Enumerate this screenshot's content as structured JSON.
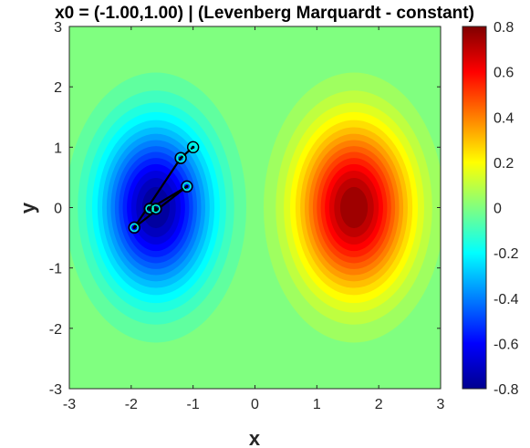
{
  "chart_data": {
    "type": "contour",
    "title": "x0 = (-1.00,1.00) | (Levenberg Marquardt - constant)",
    "xlabel": "x",
    "ylabel": "y",
    "xlim": [
      -3,
      3
    ],
    "ylim": [
      -3,
      3
    ],
    "x_ticks": [
      "-3",
      "-2",
      "-1",
      "0",
      "1",
      "2",
      "3"
    ],
    "y_ticks": [
      "-3",
      "-2",
      "-1",
      "0",
      "1",
      "2",
      "3"
    ],
    "colorbar": {
      "range": [
        -0.8,
        0.8
      ],
      "ticks": [
        "-0.8",
        "-0.6",
        "-0.4",
        "-0.2",
        "0",
        "0.2",
        "0.4",
        "0.6",
        "0.8"
      ],
      "colormap": "jet"
    },
    "contour_features": [
      {
        "kind": "minimum",
        "x": -1.6,
        "y": 0.0,
        "value": -0.8
      },
      {
        "kind": "maximum",
        "x": 1.6,
        "y": 0.0,
        "value": 0.8
      }
    ],
    "path": {
      "color": "#000000",
      "marker_color": "#00ffd0",
      "points": [
        {
          "x": -1.0,
          "y": 1.0
        },
        {
          "x": -1.2,
          "y": 0.82
        },
        {
          "x": -1.95,
          "y": -0.33
        },
        {
          "x": -1.1,
          "y": 0.35
        },
        {
          "x": -1.7,
          "y": -0.02
        },
        {
          "x": -1.6,
          "y": -0.02
        }
      ]
    }
  }
}
